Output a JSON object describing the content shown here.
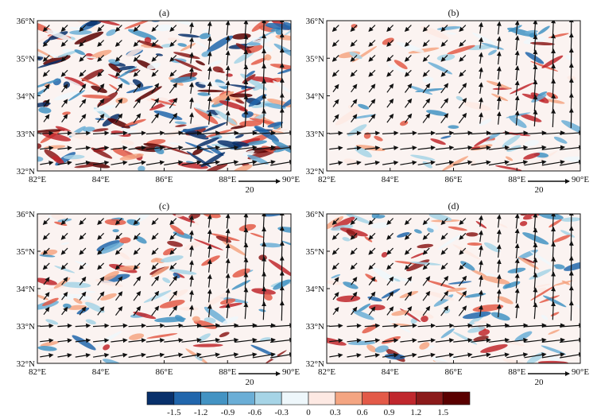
{
  "figure": {
    "panels": [
      {
        "label": "(a)"
      },
      {
        "label": "(b)"
      },
      {
        "label": "(c)"
      },
      {
        "label": "(d)"
      }
    ],
    "x_ticks": [
      "82°E",
      "84°E",
      "86°E",
      "88°E",
      "90°E"
    ],
    "y_ticks": [
      "32°N",
      "33°N",
      "34°N",
      "35°N",
      "36°N"
    ],
    "reference_vector_label": "20",
    "colorbar": {
      "tick_labels": [
        "-1.5",
        "-1.2",
        "-0.9",
        "-0.6",
        "-0.3",
        "0",
        "0.3",
        "0.6",
        "0.9",
        "1.2",
        "1.5"
      ],
      "colors": [
        "#08306b",
        "#2166ac",
        "#4393c3",
        "#6baed6",
        "#a6d4e6",
        "#eef7fb",
        "#fde9e3",
        "#f4a582",
        "#e35a48",
        "#c0272d",
        "#8b1a1a",
        "#5a0000"
      ]
    }
  },
  "chart_data": [
    {
      "type": "heatmap",
      "title": "(a)",
      "xlim": [
        82,
        90
      ],
      "ylim": [
        32,
        36
      ],
      "x_ticks": [
        "82°E",
        "84°E",
        "86°E",
        "88°E",
        "90°E"
      ],
      "y_ticks": [
        "32°N",
        "33°N",
        "34°N",
        "35°N",
        "36°N"
      ],
      "overlay": "wind vectors, reference arrow 20",
      "color_levels": [
        -1.5,
        -1.2,
        -0.9,
        -0.6,
        -0.3,
        0,
        0.3,
        0.6,
        0.9,
        1.2,
        1.5
      ]
    },
    {
      "type": "heatmap",
      "title": "(b)",
      "xlim": [
        82,
        90
      ],
      "ylim": [
        32,
        36
      ],
      "x_ticks": [
        "82°E",
        "84°E",
        "86°E",
        "88°E",
        "90°E"
      ],
      "y_ticks": [
        "32°N",
        "33°N",
        "34°N",
        "35°N",
        "36°N"
      ],
      "overlay": "wind vectors, reference arrow 20",
      "color_levels": [
        -1.5,
        -1.2,
        -0.9,
        -0.6,
        -0.3,
        0,
        0.3,
        0.6,
        0.9,
        1.2,
        1.5
      ]
    },
    {
      "type": "heatmap",
      "title": "(c)",
      "xlim": [
        82,
        90
      ],
      "ylim": [
        32,
        36
      ],
      "x_ticks": [
        "82°E",
        "84°E",
        "86°E",
        "88°E",
        "90°E"
      ],
      "y_ticks": [
        "32°N",
        "33°N",
        "34°N",
        "35°N",
        "36°N"
      ],
      "overlay": "wind vectors, reference arrow 20",
      "color_levels": [
        -1.5,
        -1.2,
        -0.9,
        -0.6,
        -0.3,
        0,
        0.3,
        0.6,
        0.9,
        1.2,
        1.5
      ]
    },
    {
      "type": "heatmap",
      "title": "(d)",
      "xlim": [
        82,
        90
      ],
      "ylim": [
        32,
        36
      ],
      "x_ticks": [
        "82°E",
        "84°E",
        "86°E",
        "88°E",
        "90°E"
      ],
      "y_ticks": [
        "32°N",
        "33°N",
        "34°N",
        "35°N",
        "36°N"
      ],
      "overlay": "wind vectors, reference arrow 20",
      "color_levels": [
        -1.5,
        -1.2,
        -0.9,
        -0.6,
        -0.3,
        0,
        0.3,
        0.6,
        0.9,
        1.2,
        1.5
      ]
    }
  ]
}
